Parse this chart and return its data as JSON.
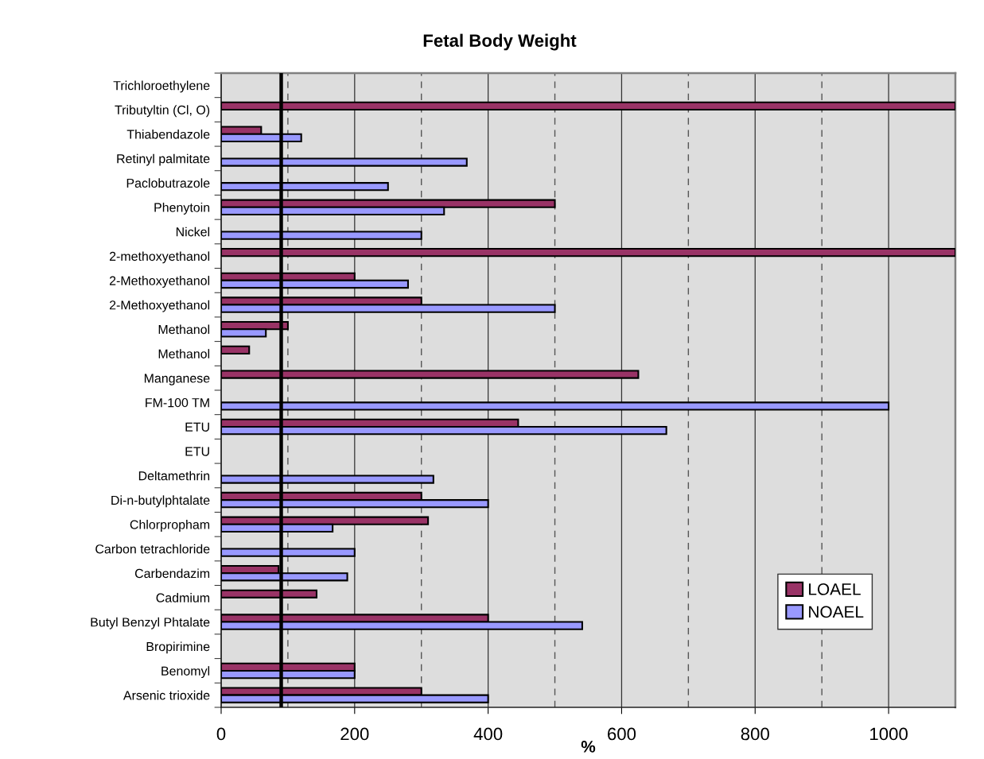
{
  "chart_data": {
    "type": "bar",
    "orientation": "horizontal",
    "title": "Fetal Body Weight",
    "xlabel": "%",
    "categories": [
      "Trichloroethylene",
      "Tributyltin (Cl, O)",
      "Thiabendazole",
      "Retinyl palmitate",
      "Paclobutrazole",
      "Phenytoin",
      "Nickel",
      "2-methoxyethanol",
      "2-Methoxyethanol",
      "2-Methoxyethanol",
      "Methanol",
      "Methanol",
      "Manganese",
      "FM-100 TM",
      "ETU",
      "ETU",
      "Deltamethrin",
      "Di-n-butylphtalate",
      "Chlorpropham",
      "Carbon tetrachloride",
      "Carbendazim",
      "Cadmium",
      "Butyl Benzyl Phtalate",
      "Bropirimine",
      "Benomyl",
      "Arsenic trioxide"
    ],
    "series": [
      {
        "name": "LOAEL",
        "color": "#993366",
        "values": [
          null,
          1100,
          60,
          null,
          null,
          500,
          null,
          1100,
          200,
          300,
          100,
          42,
          625,
          null,
          445,
          null,
          null,
          300,
          310,
          null,
          86,
          143,
          400,
          null,
          200,
          300
        ]
      },
      {
        "name": "NOAEL",
        "color": "#9999ff",
        "values": [
          null,
          null,
          120,
          368,
          250,
          334,
          300,
          null,
          280,
          500,
          67,
          null,
          null,
          1000,
          667,
          null,
          318,
          400,
          167,
          200,
          189,
          null,
          541,
          null,
          200,
          400
        ]
      }
    ],
    "xlim": [
      0,
      1100
    ],
    "xticks": [
      0,
      200,
      400,
      600,
      800,
      1000
    ],
    "grid": "x",
    "legend": "bottom right",
    "ref_lines": [
      {
        "axis": "x",
        "value": 100,
        "color": "#555555",
        "line_style": "dashed"
      },
      {
        "axis": "x",
        "value": 300,
        "color": "#555555",
        "line_style": "dashed"
      },
      {
        "axis": "x",
        "value": 500,
        "color": "#555555",
        "line_style": "dashed"
      },
      {
        "axis": "x",
        "value": 700,
        "color": "#555555",
        "line_style": "dashed"
      },
      {
        "axis": "x",
        "value": 900,
        "color": "#555555",
        "line_style": "dashed"
      },
      {
        "axis": "x",
        "value": 90,
        "color": "#000000",
        "line_style": "solid"
      }
    ]
  }
}
